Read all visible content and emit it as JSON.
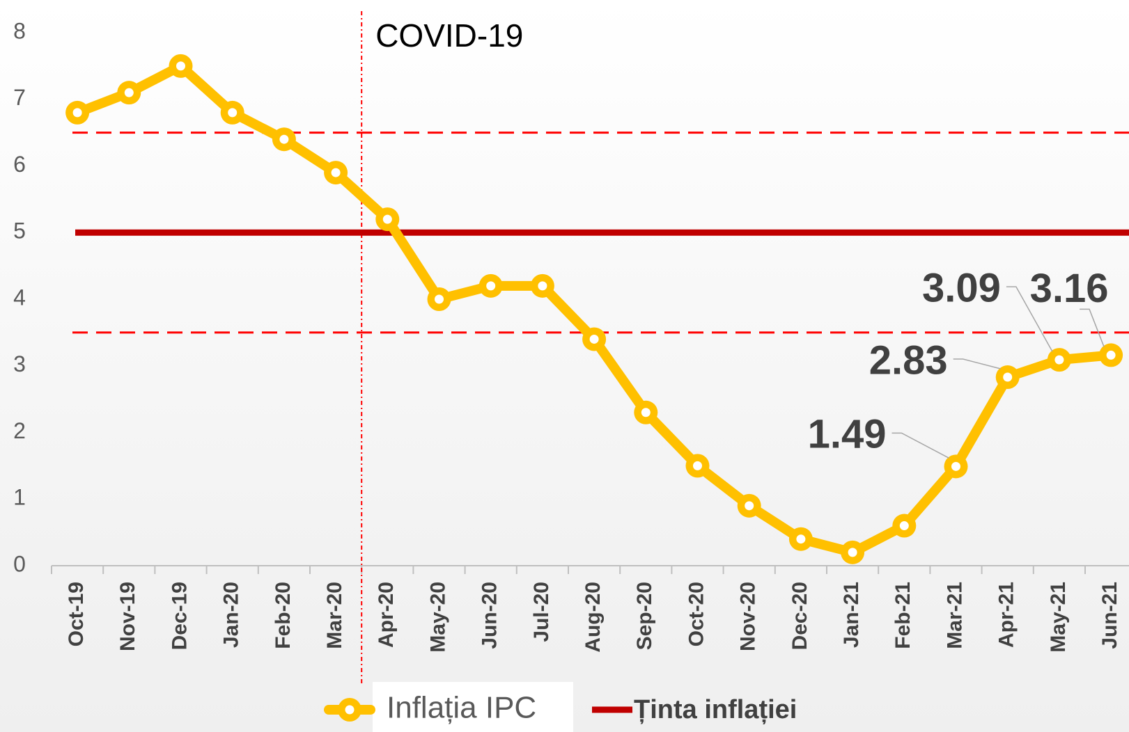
{
  "chart_data": {
    "type": "line",
    "categories": [
      "Oct-19",
      "Nov-19",
      "Dec-19",
      "Jan-20",
      "Feb-20",
      "Mar-20",
      "Apr-20",
      "May-20",
      "Jun-20",
      "Jul-20",
      "Aug-20",
      "Sep-20",
      "Oct-20",
      "Nov-20",
      "Dec-20",
      "Jan-21",
      "Feb-21",
      "Mar-21",
      "Apr-21",
      "May-21",
      "Jun-21"
    ],
    "series": [
      {
        "name": "Inflația IPC",
        "color": "#ffc000",
        "values": [
          6.8,
          7.1,
          7.5,
          6.8,
          6.4,
          5.9,
          5.2,
          4.0,
          4.2,
          4.2,
          3.4,
          2.3,
          1.5,
          0.9,
          0.4,
          0.2,
          0.6,
          1.49,
          2.83,
          3.09,
          3.16
        ],
        "value_labels": [
          null,
          null,
          null,
          null,
          null,
          null,
          null,
          null,
          null,
          null,
          null,
          null,
          null,
          null,
          null,
          null,
          null,
          "1.49",
          "2.83",
          "3.09",
          "3.16"
        ]
      },
      {
        "name": "Ținta inflației",
        "color": "#c00000",
        "values": [
          5,
          5,
          5,
          5,
          5,
          5,
          5,
          5,
          5,
          5,
          5,
          5,
          5,
          5,
          5,
          5,
          5,
          5,
          5,
          5,
          5
        ]
      }
    ],
    "reference_lines": [
      {
        "value": 6.5,
        "color": "#ff0000",
        "style": "dashed"
      },
      {
        "value": 3.5,
        "color": "#ff0000",
        "style": "dashed"
      }
    ],
    "annotation": {
      "text": "COVID-19",
      "between": [
        "Mar-20",
        "Apr-20"
      ]
    },
    "ylim": [
      0,
      8
    ],
    "yticks": [
      0,
      1,
      2,
      3,
      4,
      5,
      6,
      7,
      8
    ],
    "grid": false
  }
}
